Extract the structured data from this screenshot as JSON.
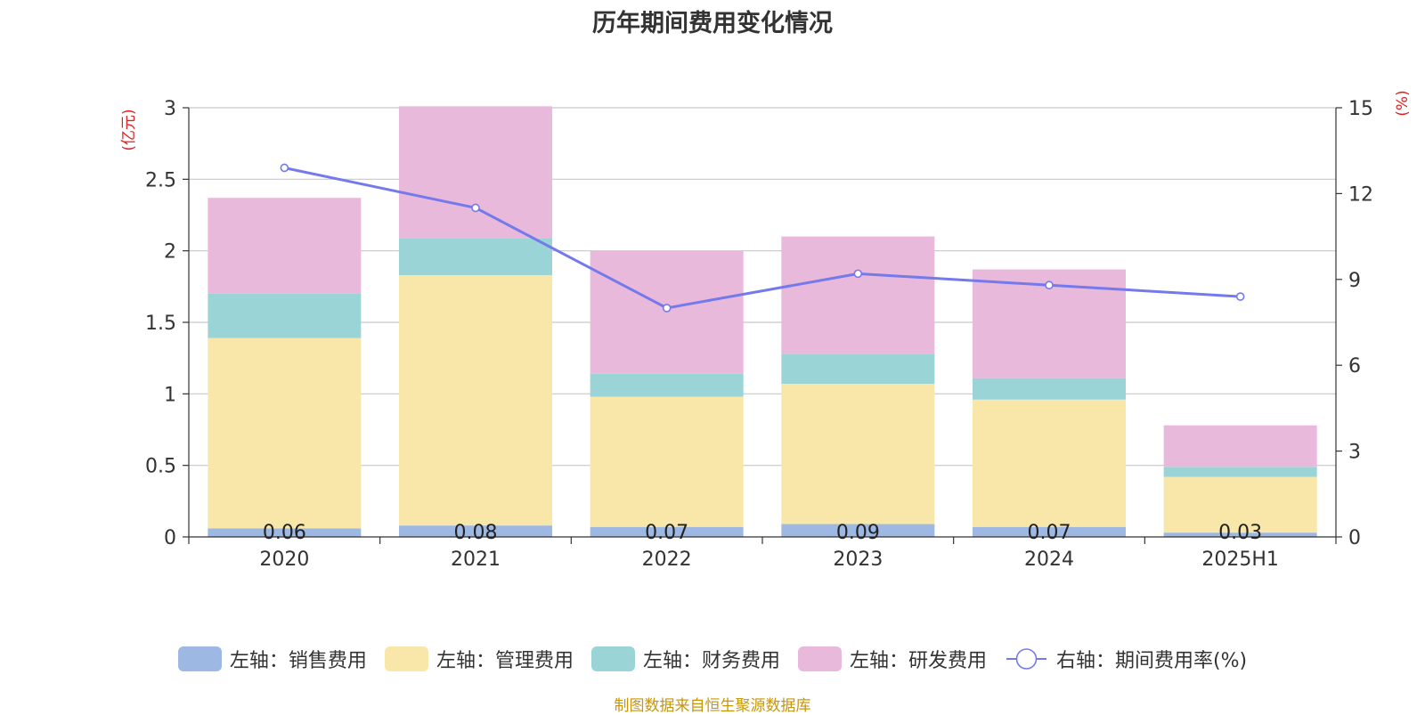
{
  "chart_data": {
    "type": "bar",
    "title": "历年期间费用变化情况",
    "categories": [
      "2020",
      "2021",
      "2022",
      "2023",
      "2024",
      "2025H1"
    ],
    "series": [
      {
        "name": "左轴：销售费用",
        "type": "bar",
        "axis": "left",
        "color": "#9db8e2",
        "values": [
          0.06,
          0.08,
          0.07,
          0.09,
          0.07,
          0.03
        ],
        "labels": [
          "0.06",
          "0.08",
          "0.07",
          "0.09",
          "0.07",
          "0.03"
        ]
      },
      {
        "name": "左轴：管理费用",
        "type": "bar",
        "axis": "left",
        "color": "#f8e7a8",
        "values": [
          1.33,
          1.75,
          0.91,
          0.98,
          0.89,
          0.39
        ]
      },
      {
        "name": "左轴：财务费用",
        "type": "bar",
        "axis": "left",
        "color": "#9bd4d6",
        "values": [
          0.31,
          0.26,
          0.16,
          0.21,
          0.15,
          0.07
        ]
      },
      {
        "name": "左轴：研发费用",
        "type": "bar",
        "axis": "left",
        "color": "#e8b9da",
        "values": [
          0.67,
          0.92,
          0.86,
          0.82,
          0.76,
          0.29
        ]
      },
      {
        "name": "右轴：期间费用率(%)",
        "type": "line",
        "axis": "right",
        "color": "#7479ec",
        "values": [
          12.9,
          11.5,
          8.0,
          9.2,
          8.8,
          8.4
        ]
      }
    ],
    "y_left": {
      "label": "(亿元)",
      "ylim": [
        0,
        3
      ],
      "ticks": [
        "0",
        "0.5",
        "1",
        "1.5",
        "2",
        "2.5",
        "3"
      ]
    },
    "y_right": {
      "label": "(%)",
      "ylim": [
        0,
        15
      ],
      "ticks": [
        "0",
        "3",
        "6",
        "9",
        "12",
        "15"
      ]
    },
    "grid": true,
    "legend_position": "bottom",
    "source": "制图数据来自恒生聚源数据库"
  }
}
